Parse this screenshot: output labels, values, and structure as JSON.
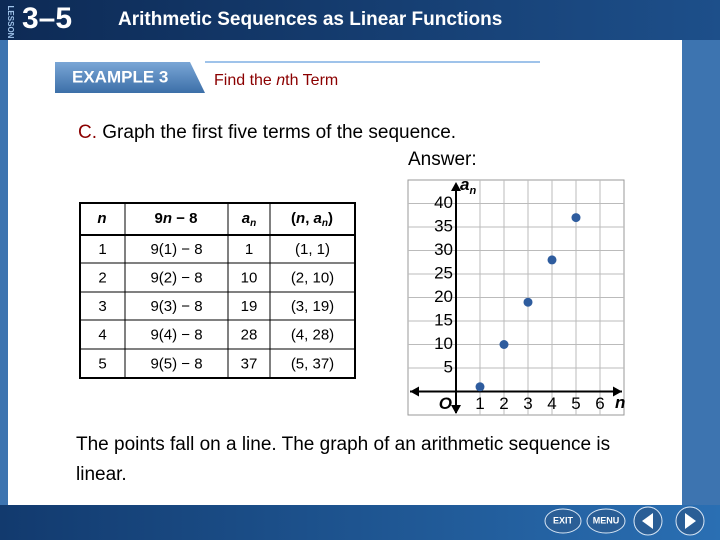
{
  "header": {
    "lesson": "LESSON",
    "number": "3–5",
    "title": "Arithmetic Sequences as Linear Functions"
  },
  "example": {
    "tab": "EXAMPLE 3",
    "subtitle": [
      "Find the ",
      "n",
      "th Term"
    ]
  },
  "question": {
    "part": "C.",
    "text": "Graph the first five terms of the sequence.",
    "answer": "Answer:"
  },
  "table": {
    "header": [
      [
        "n"
      ],
      [
        "9",
        "n",
        " − 8"
      ],
      [
        "a",
        "n"
      ],
      [
        "(",
        "n",
        ", ",
        "a",
        "n",
        ")"
      ]
    ],
    "rows": [
      [
        "1",
        "9(1) − 8",
        "1",
        "(1, 1)"
      ],
      [
        "2",
        "9(2) − 8",
        "10",
        "(2, 10)"
      ],
      [
        "3",
        "9(3) − 8",
        "19",
        "(3, 19)"
      ],
      [
        "4",
        "9(4) − 8",
        "28",
        "(4, 28)"
      ],
      [
        "5",
        "9(5) − 8",
        "37",
        "(5, 37)"
      ]
    ]
  },
  "chart_data": {
    "type": "scatter",
    "x": [
      1,
      2,
      3,
      4,
      5
    ],
    "values": [
      1,
      10,
      19,
      28,
      37
    ],
    "color": "#2e5c9e",
    "xlim": [
      -2,
      7
    ],
    "ylim": [
      -5,
      45
    ],
    "xticks": [
      1,
      2,
      3,
      4,
      5,
      6
    ],
    "yticks": [
      5,
      10,
      15,
      20,
      25,
      30,
      35,
      40
    ],
    "origin_label": "O",
    "xlabel": "n",
    "ylabel": "a",
    "ylabel_subscript": "n",
    "grid": true
  },
  "conclusion": "The points fall on a line. The graph of an arithmetic sequence is linear.",
  "nav": {
    "exit": "EXIT",
    "menu": "MENU"
  }
}
